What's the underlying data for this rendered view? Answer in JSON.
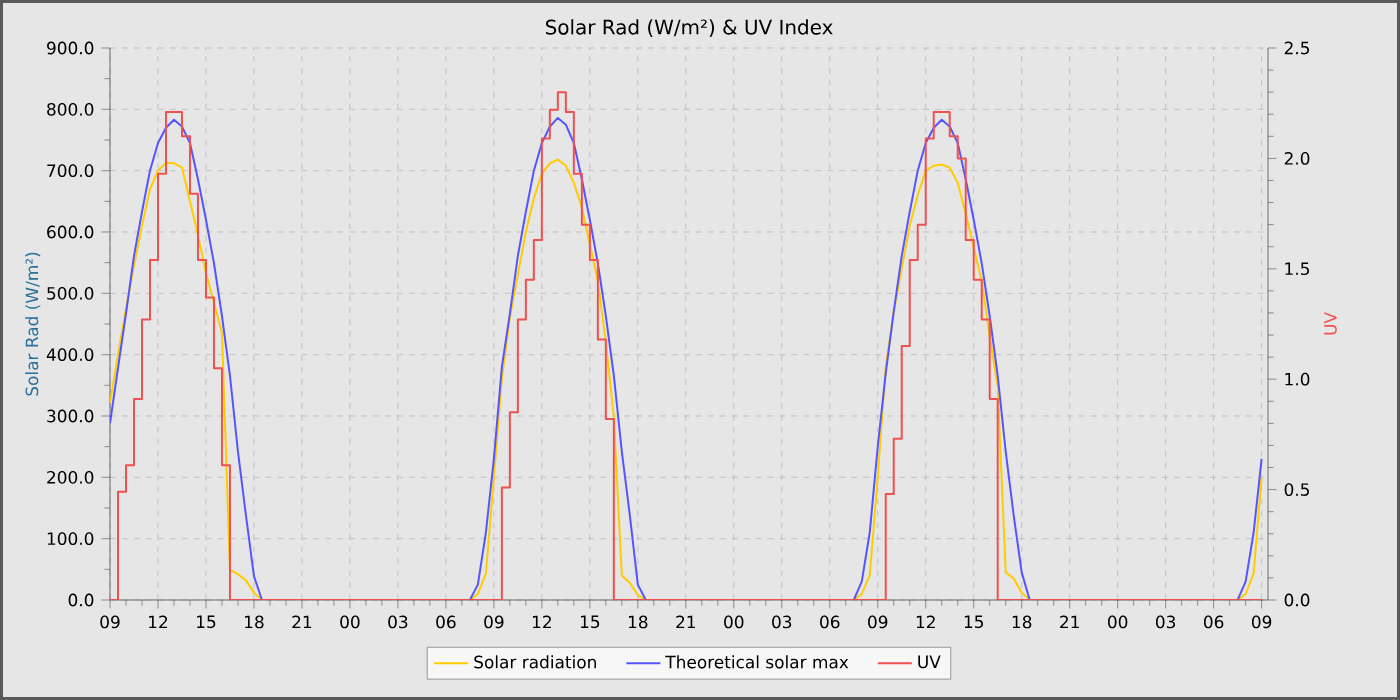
{
  "chart_data": {
    "type": "line",
    "title": "Solar Rad (W/m²) &  UV Index",
    "ylabel": "Solar Rad (W/m²)",
    "y2label": "UV",
    "categories": [
      "09",
      null,
      null,
      null,
      null,
      null,
      "12",
      null,
      null,
      null,
      null,
      null,
      "15",
      null,
      null,
      null,
      null,
      null,
      "18",
      null,
      null,
      null,
      null,
      null,
      "21",
      null,
      null,
      null,
      null,
      null,
      "00",
      null,
      null,
      null,
      null,
      null,
      "03",
      null,
      null,
      null,
      null,
      null,
      "06",
      null,
      null,
      null,
      null,
      null,
      "09",
      null,
      null,
      null,
      null,
      null,
      "12",
      null,
      null,
      null,
      null,
      null,
      "15",
      null,
      null,
      null,
      null,
      null,
      "18",
      null,
      null,
      null,
      null,
      null,
      "21",
      null,
      null,
      null,
      null,
      null,
      "00",
      null,
      null,
      null,
      null,
      null,
      "03",
      null,
      null,
      null,
      null,
      null,
      "06",
      null,
      null,
      null,
      null,
      null,
      "09",
      null,
      null,
      null,
      null,
      null,
      "12",
      null,
      null,
      null,
      null,
      null,
      "15",
      null,
      null,
      null,
      null,
      null,
      "18",
      null,
      null,
      null,
      null,
      null,
      "21",
      null,
      null,
      null,
      null,
      null,
      "00",
      null,
      null,
      null,
      null,
      null,
      "03",
      null,
      null,
      null,
      null,
      null,
      "06",
      null,
      null,
      null,
      null,
      null,
      "09"
    ],
    "ylim": [
      0,
      900
    ],
    "yticks": [
      {
        "value": 0,
        "label": "0.0"
      },
      {
        "value": 100,
        "label": "100.0"
      },
      {
        "value": 200,
        "label": "200.0"
      },
      {
        "value": 300,
        "label": "300.0"
      },
      {
        "value": 400,
        "label": "400.0"
      },
      {
        "value": 500,
        "label": "500.0"
      },
      {
        "value": 600,
        "label": "600.0"
      },
      {
        "value": 700,
        "label": "700.0"
      },
      {
        "value": 800,
        "label": "800.0"
      },
      {
        "value": 900,
        "label": "900.0"
      }
    ],
    "y2lim": [
      0,
      2.5
    ],
    "y2ticks": [
      {
        "value": 0,
        "label": "0.0"
      },
      {
        "value": 0.5,
        "label": "0.5"
      },
      {
        "value": 1,
        "label": "1.0"
      },
      {
        "value": 1.5,
        "label": "1.5"
      },
      {
        "value": 2,
        "label": "2.0"
      },
      {
        "value": 2.5,
        "label": "2.5"
      }
    ],
    "grid": true,
    "legend": "bottom",
    "marker": "none",
    "line_style": "solid",
    "series": [
      {
        "name": "Solar radiation",
        "color": "#ffcc00",
        "values": [
          321,
          400,
          475,
          545,
          610,
          670,
          700,
          713,
          712,
          705,
          650,
          595,
          533,
          485,
          435,
          49,
          42,
          32,
          12,
          0,
          null,
          null,
          null,
          null,
          null,
          null,
          null,
          null,
          null,
          null,
          null,
          null,
          null,
          null,
          null,
          null,
          null,
          null,
          null,
          null,
          null,
          null,
          null,
          null,
          null,
          0,
          10,
          43,
          200,
          360,
          460,
          530,
          600,
          655,
          695,
          712,
          718,
          708,
          680,
          640,
          580,
          520,
          420,
          299,
          40,
          28,
          8,
          0,
          null,
          null,
          null,
          null,
          null,
          null,
          null,
          null,
          null,
          null,
          null,
          null,
          null,
          null,
          null,
          null,
          null,
          null,
          null,
          null,
          null,
          null,
          null,
          null,
          null,
          0,
          10,
          40,
          200,
          380,
          470,
          540,
          610,
          660,
          700,
          708,
          710,
          705,
          680,
          630,
          575,
          520,
          430,
          348,
          45,
          35,
          12,
          0,
          null,
          null,
          null,
          null,
          null,
          null,
          null,
          null,
          null,
          null,
          null,
          null,
          null,
          null,
          null,
          null,
          null,
          null,
          null,
          null,
          null,
          null,
          null,
          null,
          null,
          0,
          10,
          43,
          200
        ]
      },
      {
        "name": "Theoretical solar max",
        "color": "#5555ff",
        "values": [
          288,
          378,
          467,
          561,
          633,
          700,
          745,
          770,
          783,
          772,
          745,
          686,
          620,
          549,
          463,
          366,
          242,
          138,
          39,
          0,
          null,
          null,
          null,
          null,
          null,
          null,
          null,
          null,
          null,
          null,
          null,
          null,
          null,
          null,
          null,
          null,
          null,
          null,
          null,
          null,
          null,
          null,
          null,
          null,
          null,
          0,
          25,
          110,
          230,
          380,
          467,
          561,
          633,
          700,
          745,
          772,
          786,
          775,
          745,
          686,
          620,
          549,
          463,
          366,
          242,
          138,
          25,
          0,
          null,
          null,
          null,
          null,
          null,
          null,
          null,
          null,
          null,
          null,
          null,
          null,
          null,
          null,
          null,
          null,
          null,
          null,
          null,
          null,
          null,
          null,
          null,
          null,
          null,
          0,
          30,
          110,
          250,
          370,
          470,
          561,
          633,
          700,
          745,
          770,
          783,
          772,
          745,
          686,
          620,
          549,
          463,
          366,
          242,
          138,
          45,
          0,
          null,
          null,
          null,
          null,
          null,
          null,
          null,
          null,
          null,
          null,
          null,
          null,
          null,
          null,
          null,
          null,
          null,
          null,
          null,
          null,
          null,
          null,
          null,
          null,
          null,
          0,
          30,
          110,
          230
        ]
      },
      {
        "name": "UV",
        "color": "#f05050",
        "type": "step",
        "axis": "y2",
        "values": [
          0,
          0.49,
          0.61,
          0.91,
          1.27,
          1.54,
          1.93,
          2.21,
          2.21,
          2.1,
          1.84,
          1.54,
          1.37,
          1.05,
          0.61,
          0,
          0,
          0,
          0,
          0,
          0,
          0,
          0,
          0,
          0,
          0,
          0,
          0,
          0,
          0,
          0,
          0,
          0,
          0,
          0,
          0,
          0,
          0,
          0,
          0,
          0,
          0,
          0,
          0,
          0,
          0,
          0,
          0,
          0,
          0.51,
          0.85,
          1.27,
          1.45,
          1.63,
          2.09,
          2.22,
          2.3,
          2.21,
          1.93,
          1.7,
          1.54,
          1.18,
          0.82,
          0,
          0,
          0,
          0,
          0,
          0,
          0,
          0,
          0,
          0,
          0,
          0,
          0,
          0,
          0,
          0,
          0,
          0,
          0,
          0,
          0,
          0,
          0,
          0,
          0,
          0,
          0,
          0,
          0,
          0,
          0,
          0,
          0,
          0,
          0.48,
          0.73,
          1.15,
          1.54,
          1.7,
          2.09,
          2.21,
          2.21,
          2.1,
          2.0,
          1.63,
          1.45,
          1.27,
          0.91,
          0,
          0,
          0,
          0,
          0,
          0,
          0,
          0,
          0,
          0,
          0,
          0,
          0,
          0,
          0,
          0,
          0,
          0,
          0,
          0,
          0,
          0,
          0,
          0,
          0,
          0,
          0,
          0,
          0,
          0,
          0,
          0,
          0,
          0
        ]
      }
    ]
  }
}
